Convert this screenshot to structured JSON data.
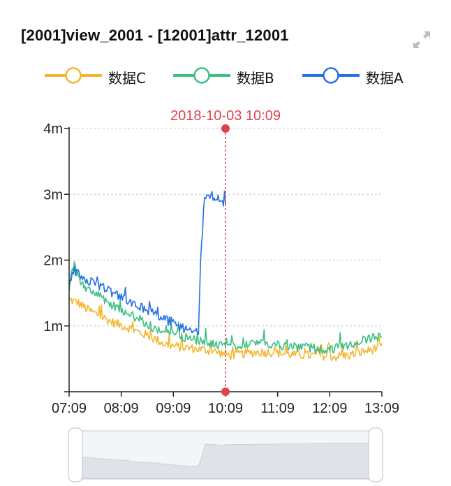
{
  "header": {
    "title": "[2001]view_2001 - [12001]attr_12001",
    "expand_icon": "expand-arrows-icon"
  },
  "chart_data": {
    "type": "line",
    "title": "[2001]view_2001 - [12001]attr_12001",
    "xlabel": "",
    "ylabel": "",
    "x_ticks": [
      "07:09",
      "08:09",
      "09:09",
      "10:09",
      "11:09",
      "12:09",
      "13:09"
    ],
    "y_ticks": [
      "",
      "1m",
      "2m",
      "3m",
      "4m"
    ],
    "ylim": [
      0,
      4
    ],
    "grid": true,
    "legend_position": "top-center",
    "series": [
      {
        "name": "数据C",
        "color": "#f5b62f",
        "x": [
          "07:09",
          "07:20",
          "07:30",
          "07:45",
          "08:00",
          "08:15",
          "08:30",
          "08:45",
          "09:00",
          "09:15",
          "09:30",
          "09:45",
          "10:00",
          "10:09",
          "10:15",
          "10:30",
          "10:45",
          "11:00",
          "11:15",
          "11:30",
          "11:45",
          "12:00",
          "12:15",
          "12:30",
          "12:45",
          "13:00",
          "13:09"
        ],
        "values": [
          1.4,
          1.35,
          1.25,
          1.15,
          1.05,
          0.98,
          0.9,
          0.82,
          0.72,
          0.68,
          0.66,
          0.64,
          0.6,
          0.57,
          0.55,
          0.58,
          0.6,
          0.6,
          0.58,
          0.56,
          0.55,
          0.55,
          0.53,
          0.55,
          0.6,
          0.65,
          0.68
        ]
      },
      {
        "name": "数据B",
        "color": "#3cc083",
        "x": [
          "07:09",
          "07:15",
          "07:20",
          "07:30",
          "07:45",
          "08:00",
          "08:15",
          "08:30",
          "08:45",
          "09:00",
          "09:15",
          "09:30",
          "09:45",
          "10:00",
          "10:09",
          "10:15",
          "10:30",
          "10:45",
          "11:00",
          "11:15",
          "11:30",
          "11:45",
          "12:00",
          "12:15",
          "12:30",
          "12:45",
          "13:00",
          "13:09"
        ],
        "values": [
          1.6,
          1.95,
          1.7,
          1.55,
          1.45,
          1.3,
          1.2,
          1.1,
          0.98,
          0.9,
          0.85,
          0.8,
          0.75,
          0.72,
          0.7,
          0.7,
          0.72,
          0.75,
          0.72,
          0.7,
          0.68,
          0.67,
          0.65,
          0.66,
          0.7,
          0.78,
          0.82,
          0.85
        ]
      },
      {
        "name": "数据A",
        "color": "#2471e6",
        "x": [
          "07:09",
          "07:15",
          "07:20",
          "07:30",
          "07:45",
          "08:00",
          "08:15",
          "08:30",
          "08:45",
          "09:00",
          "09:15",
          "09:30",
          "09:38",
          "09:40",
          "09:45",
          "10:00",
          "10:09"
        ],
        "values": [
          1.65,
          1.85,
          1.78,
          1.7,
          1.6,
          1.5,
          1.4,
          1.3,
          1.2,
          1.1,
          0.98,
          0.92,
          0.9,
          1.9,
          3.0,
          2.95,
          2.85
        ]
      }
    ],
    "crosshair": {
      "label": "2018-10-03 10:09",
      "x": "10:09",
      "color": "#e0424c"
    },
    "datazoom": {
      "start": 0,
      "end": 1
    }
  }
}
